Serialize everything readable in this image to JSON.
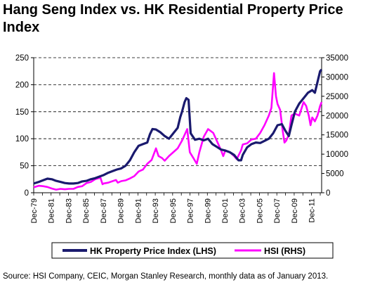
{
  "chart_data": {
    "type": "line",
    "title": "Hang Seng Index vs. HK Residential Property Price Index",
    "source": "Source: HSI Company, CEIC, Morgan Stanley Research, monthly data as of January 2013.",
    "x_ticks": [
      "Dec-79",
      "Dec-81",
      "Dec-83",
      "Dec-85",
      "Dec-87",
      "Dec-89",
      "Dec-91",
      "Dec-93",
      "Dec-95",
      "Dec-97",
      "Dec-99",
      "Dec-01",
      "Dec-03",
      "Dec-05",
      "Dec-07",
      "Dec-09",
      "Dec-11"
    ],
    "x_range": [
      1979.92,
      2013.08
    ],
    "y_left": {
      "ylim": [
        0,
        250
      ],
      "ticks": [
        "0",
        "50",
        "100",
        "150",
        "200",
        "250"
      ]
    },
    "y_right": {
      "ylim": [
        0,
        35000
      ],
      "ticks": [
        "0",
        "5000",
        "10000",
        "15000",
        "20000",
        "25000",
        "30000",
        "35000"
      ]
    },
    "grid": "horizontal dashed",
    "legend_position": "bottom",
    "colors": {
      "property": "#1a1a6e",
      "hsi": "#ff00ff"
    },
    "series": [
      {
        "name": "HK Property Price Index (LHS)",
        "axis": "left",
        "x": [
          1979.92,
          1980.5,
          1981.0,
          1981.5,
          1982.0,
          1982.5,
          1983.0,
          1983.5,
          1984.0,
          1984.5,
          1985.0,
          1985.5,
          1986.0,
          1986.5,
          1987.0,
          1987.5,
          1988.0,
          1988.5,
          1989.0,
          1989.5,
          1990.0,
          1990.5,
          1991.0,
          1991.5,
          1992.0,
          1992.5,
          1993.0,
          1993.3,
          1993.6,
          1994.0,
          1994.5,
          1995.0,
          1995.5,
          1996.0,
          1996.5,
          1996.8,
          1997.0,
          1997.3,
          1997.5,
          1997.75,
          1998.0,
          1998.5,
          1999.0,
          1999.5,
          2000.0,
          2000.5,
          2001.0,
          2001.5,
          2002.0,
          2002.5,
          2003.0,
          2003.5,
          2003.8,
          2004.0,
          2004.5,
          2005.0,
          2005.5,
          2006.0,
          2006.5,
          2007.0,
          2007.5,
          2008.0,
          2008.5,
          2008.9,
          2009.3,
          2009.6,
          2010.0,
          2010.5,
          2011.0,
          2011.5,
          2012.0,
          2012.3,
          2012.6,
          2012.9,
          2013.08
        ],
        "values": [
          17,
          20,
          23,
          26,
          25,
          22,
          20,
          18,
          17,
          17,
          18,
          21,
          22,
          25,
          27,
          30,
          33,
          37,
          40,
          43,
          45,
          50,
          60,
          75,
          87,
          90,
          93,
          108,
          118,
          117,
          112,
          105,
          100,
          110,
          120,
          140,
          150,
          168,
          175,
          172,
          110,
          98,
          100,
          97,
          100,
          90,
          85,
          80,
          78,
          75,
          70,
          60,
          60,
          70,
          84,
          90,
          93,
          92,
          96,
          100,
          110,
          125,
          127,
          115,
          105,
          125,
          150,
          165,
          175,
          185,
          190,
          185,
          205,
          225,
          228
        ]
      },
      {
        "name": "HSI (RHS)",
        "axis": "right",
        "x": [
          1979.92,
          1980.5,
          1981.0,
          1981.5,
          1982.0,
          1982.5,
          1983.0,
          1983.5,
          1984.0,
          1984.5,
          1985.0,
          1985.5,
          1986.0,
          1986.5,
          1987.0,
          1987.6,
          1987.85,
          1988.0,
          1988.5,
          1989.0,
          1989.4,
          1989.6,
          1990.0,
          1990.5,
          1991.0,
          1991.5,
          1992.0,
          1992.5,
          1993.0,
          1993.5,
          1994.0,
          1994.3,
          1994.7,
          1995.0,
          1995.5,
          1996.0,
          1996.5,
          1997.0,
          1997.6,
          1997.9,
          1998.3,
          1998.7,
          1999.0,
          1999.5,
          2000.0,
          2000.3,
          2000.6,
          2001.0,
          2001.5,
          2001.75,
          2002.0,
          2002.5,
          2003.0,
          2003.3,
          2003.8,
          2004.0,
          2004.5,
          2005.0,
          2005.5,
          2006.0,
          2006.5,
          2007.0,
          2007.3,
          2007.6,
          2007.82,
          2008.0,
          2008.3,
          2008.6,
          2008.8,
          2009.0,
          2009.3,
          2009.6,
          2010.0,
          2010.5,
          2011.0,
          2011.3,
          2011.6,
          2011.8,
          2012.0,
          2012.3,
          2012.6,
          2012.9,
          2013.08
        ],
        "values": [
          1400,
          1800,
          1700,
          1500,
          1100,
          800,
          1000,
          900,
          1000,
          1000,
          1500,
          1700,
          2500,
          2800,
          3500,
          3900,
          2200,
          2400,
          2600,
          3000,
          3300,
          2600,
          3000,
          3200,
          3700,
          4300,
          5500,
          6000,
          7500,
          8500,
          11500,
          9500,
          9000,
          8300,
          9500,
          10500,
          11500,
          13500,
          16500,
          10500,
          9000,
          7500,
          10500,
          14500,
          16500,
          16000,
          15500,
          13500,
          11000,
          9500,
          11000,
          10500,
          9500,
          8700,
          11000,
          12500,
          12800,
          13800,
          14000,
          15500,
          17500,
          20000,
          22000,
          31000,
          25000,
          23000,
          21500,
          16000,
          13000,
          13500,
          15000,
          20000,
          20500,
          20000,
          23500,
          22500,
          20000,
          17500,
          19500,
          18500,
          20000,
          22500,
          23500
        ]
      }
    ]
  }
}
